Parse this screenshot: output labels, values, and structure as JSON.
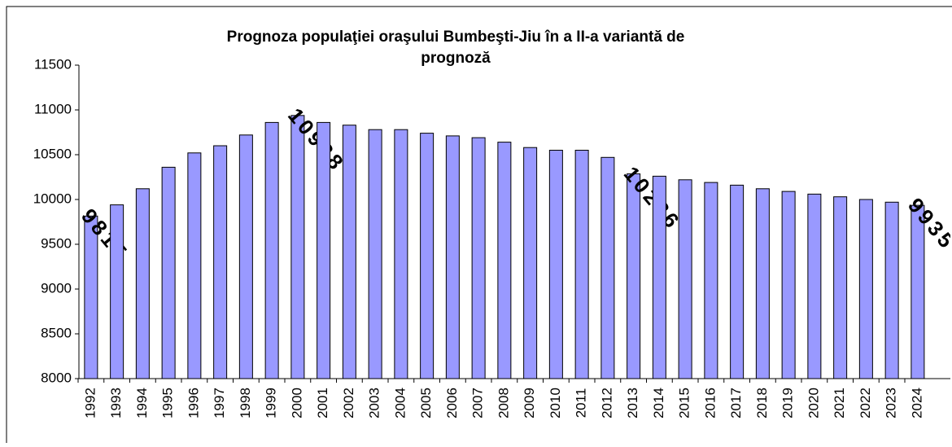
{
  "chart_data": {
    "type": "bar",
    "title": "Prognoza populaţiei oraşului Bumbeşti-Jiu în a II-a variantă de prognoză",
    "categories": [
      "1992",
      "1993",
      "1994",
      "1995",
      "1996",
      "1997",
      "1998",
      "1999",
      "2000",
      "2001",
      "2002",
      "2003",
      "2004",
      "2005",
      "2006",
      "2007",
      "2008",
      "2009",
      "2010",
      "2011",
      "2012",
      "2013",
      "2014",
      "2015",
      "2016",
      "2017",
      "2018",
      "2019",
      "2020",
      "2021",
      "2022",
      "2023",
      "2024"
    ],
    "values": [
      9815,
      9940,
      10120,
      10360,
      10520,
      10600,
      10720,
      10860,
      10938,
      10860,
      10830,
      10780,
      10780,
      10740,
      10710,
      10690,
      10640,
      10580,
      10550,
      10550,
      10470,
      10286,
      10260,
      10220,
      10190,
      10160,
      10120,
      10090,
      10060,
      10030,
      10000,
      9970,
      9935
    ],
    "value_labels": [
      "9815",
      null,
      null,
      null,
      null,
      null,
      null,
      null,
      "10938",
      null,
      null,
      null,
      null,
      null,
      null,
      null,
      null,
      null,
      null,
      null,
      null,
      "10286",
      null,
      null,
      null,
      null,
      null,
      null,
      null,
      null,
      null,
      null,
      "9935"
    ],
    "color": "#9999ff",
    "ylim": [
      8000,
      11500
    ],
    "yticks": [
      8000,
      8500,
      9000,
      9500,
      10000,
      10500,
      11000,
      11500
    ]
  }
}
